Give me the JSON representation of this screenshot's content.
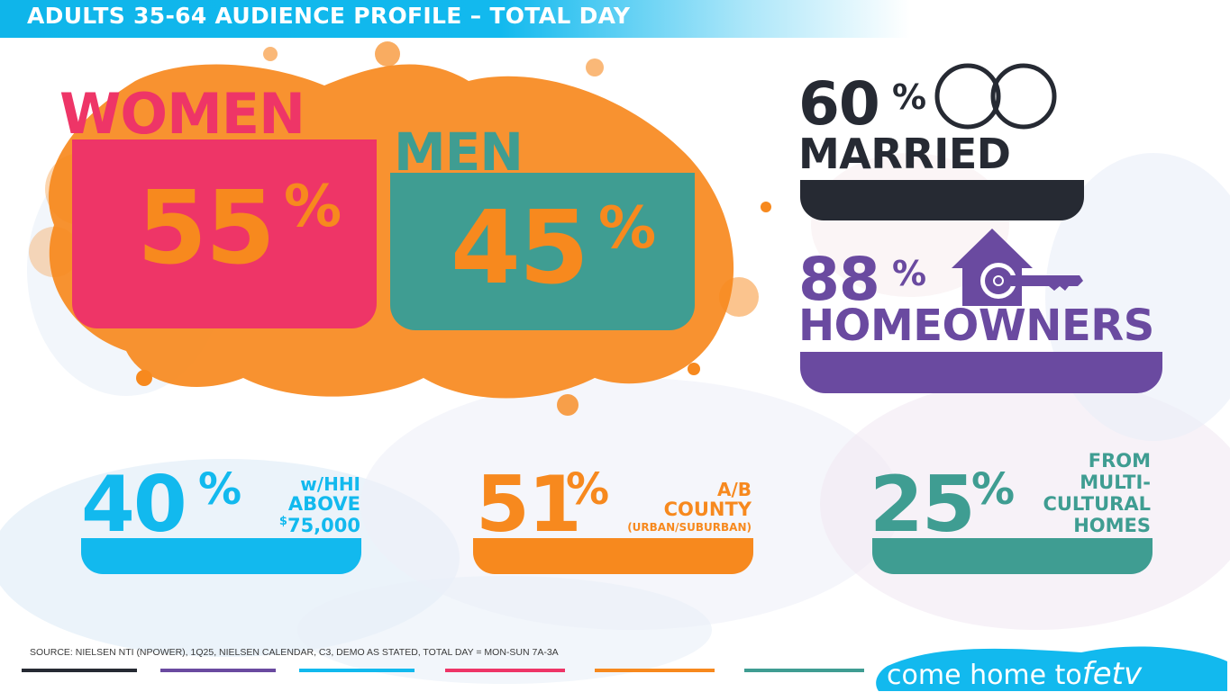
{
  "header": {
    "title": "ADULTS 35-64 AUDIENCE PROFILE – TOTAL DAY"
  },
  "gender": {
    "women": {
      "label": "WOMEN",
      "value": "55",
      "pct": "%"
    },
    "men": {
      "label": "MEN",
      "value": "45",
      "pct": "%"
    }
  },
  "married": {
    "value": "60",
    "pct": "%",
    "label": "MARRIED"
  },
  "homeowners": {
    "value": "88",
    "pct": "%",
    "label": "HOMEOWNERS"
  },
  "stats": [
    {
      "value": "40",
      "pct": "%",
      "line1": "w/HHI",
      "line2": "ABOVE",
      "line3_sup": "$",
      "line3": "75,000"
    },
    {
      "value": "51",
      "pct": "%",
      "line1": "A/B",
      "line2": "COUNTY",
      "line3": "(URBAN/SUBURBAN)"
    },
    {
      "value": "25",
      "pct": "%",
      "line1": "FROM",
      "line2": "MULTI-",
      "line3": "CULTURAL",
      "line4": "HOMES"
    }
  ],
  "footer": {
    "source": "SOURCE: NIELSEN NTI (NPOWER), 1Q25, NIELSEN CALENDAR, C3, DEMO AS STATED, TOTAL DAY = MON-SUN  7A-3A",
    "tagline": "come home to",
    "brand": "fetv"
  },
  "colors": {
    "pink": "#ee3567",
    "teal": "#3f9d92",
    "orange": "#f7891e",
    "dark": "#262a33",
    "purple": "#6a4aa0",
    "cyan": "#12b9ee"
  },
  "icons": [
    "wedding-rings-icon",
    "house-key-icon"
  ]
}
